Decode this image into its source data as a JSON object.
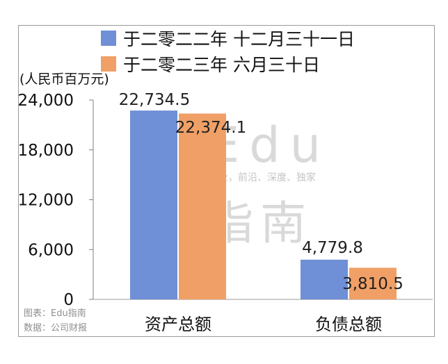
{
  "chart_data": {
    "type": "bar",
    "categories": [
      "资产总额",
      "负债总额"
    ],
    "series": [
      {
        "name": "于二零二二年 十二月三十一日",
        "values": [
          22734.5,
          4779.8
        ],
        "labels": [
          "22,734.5",
          "4,779.8"
        ],
        "color": "#6f8fd6"
      },
      {
        "name": "于二零二三年 六月三十日",
        "values": [
          22374.1,
          3810.5
        ],
        "labels": [
          "22,374.1",
          "3,810.5"
        ],
        "color": "#f0a066"
      }
    ],
    "unit_label": "(人民币百万元)",
    "yticks": [
      "0",
      "6,000",
      "12,000",
      "18,000",
      "24,000"
    ],
    "ytick_values": [
      0,
      6000,
      12000,
      18000,
      24000
    ],
    "ylim": [
      0,
      24000
    ],
    "gridlines": false,
    "legend_position": "top"
  },
  "source": {
    "chart_credit": "图表：Edu指南",
    "data_credit": "数据：公司财报"
  },
  "watermark": {
    "line1": "Edu",
    "tagline": "教育行业，前沿、深度、独家",
    "line2": "指南"
  }
}
